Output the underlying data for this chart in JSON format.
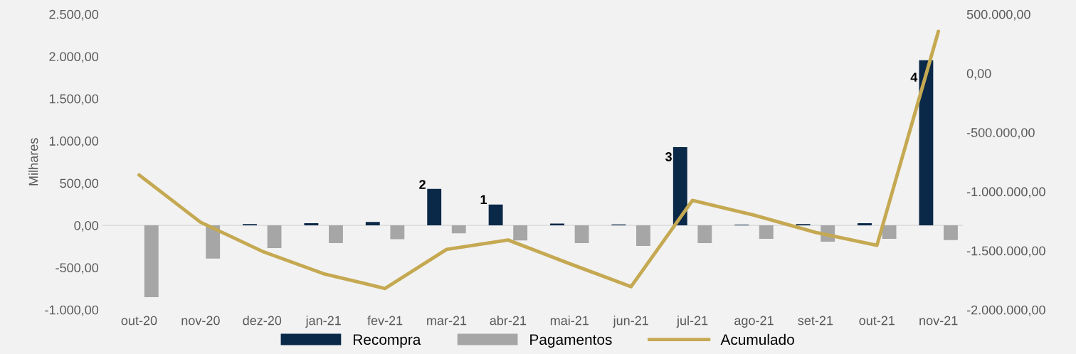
{
  "chart_data": {
    "type": "bar",
    "ylabel": "Milhares",
    "categories": [
      "out-20",
      "nov-20",
      "dez-20",
      "jan-21",
      "fev-21",
      "mar-21",
      "abr-21",
      "mai-21",
      "jun-21",
      "jul-21",
      "ago-21",
      "set-21",
      "out-21",
      "nov-21"
    ],
    "series": [
      {
        "name": "Recompra",
        "color": "#0a2848",
        "values": [
          0,
          0,
          15,
          25,
          40,
          430,
          245,
          20,
          10,
          925,
          8,
          15,
          25,
          1955
        ]
      },
      {
        "name": "Pagamentos",
        "color": "#a6a6a6",
        "values": [
          -850,
          -395,
          -270,
          -210,
          -165,
          -95,
          -180,
          -210,
          -245,
          -210,
          -160,
          -195,
          -160,
          -175
        ]
      },
      {
        "name": "Acumulado",
        "type": "line",
        "axis": "y2",
        "color": "#c5a952",
        "values": [
          -860000,
          -1260000,
          -1505000,
          -1695000,
          -1820000,
          -1490000,
          -1410000,
          -1610000,
          -1805000,
          -1075000,
          -1200000,
          -1345000,
          -1455000,
          355000
        ]
      }
    ],
    "ylim": [
      -1000,
      2500
    ],
    "yticks": [
      {
        "value": -1000,
        "label": "-1.000,00"
      },
      {
        "value": -500,
        "label": "-500,00"
      },
      {
        "value": 0,
        "label": "0,00"
      },
      {
        "value": 500,
        "label": "500,00"
      },
      {
        "value": 1000,
        "label": "1.000,00"
      },
      {
        "value": 1500,
        "label": "1.500,00"
      },
      {
        "value": 2000,
        "label": "2.000,00"
      },
      {
        "value": 2500,
        "label": "2.500,00"
      }
    ],
    "y2lim": [
      -2000000,
      500000
    ],
    "y2ticks": [
      {
        "value": -2000000,
        "label": "-2.000.000,00"
      },
      {
        "value": -1500000,
        "label": "-1.500.000,00"
      },
      {
        "value": -1000000,
        "label": "-1.000.000,00"
      },
      {
        "value": -500000,
        "label": "-500.000,00"
      },
      {
        "value": 0,
        "label": "0,00"
      },
      {
        "value": 500000,
        "label": "500.000,00"
      }
    ],
    "annotations": [
      "2",
      "1",
      "3",
      "4"
    ],
    "ref_lines": [
      {
        "axis": "y",
        "value": 0,
        "color": "#d9d9d9"
      }
    ],
    "legend": "bottom",
    "grid": false
  }
}
